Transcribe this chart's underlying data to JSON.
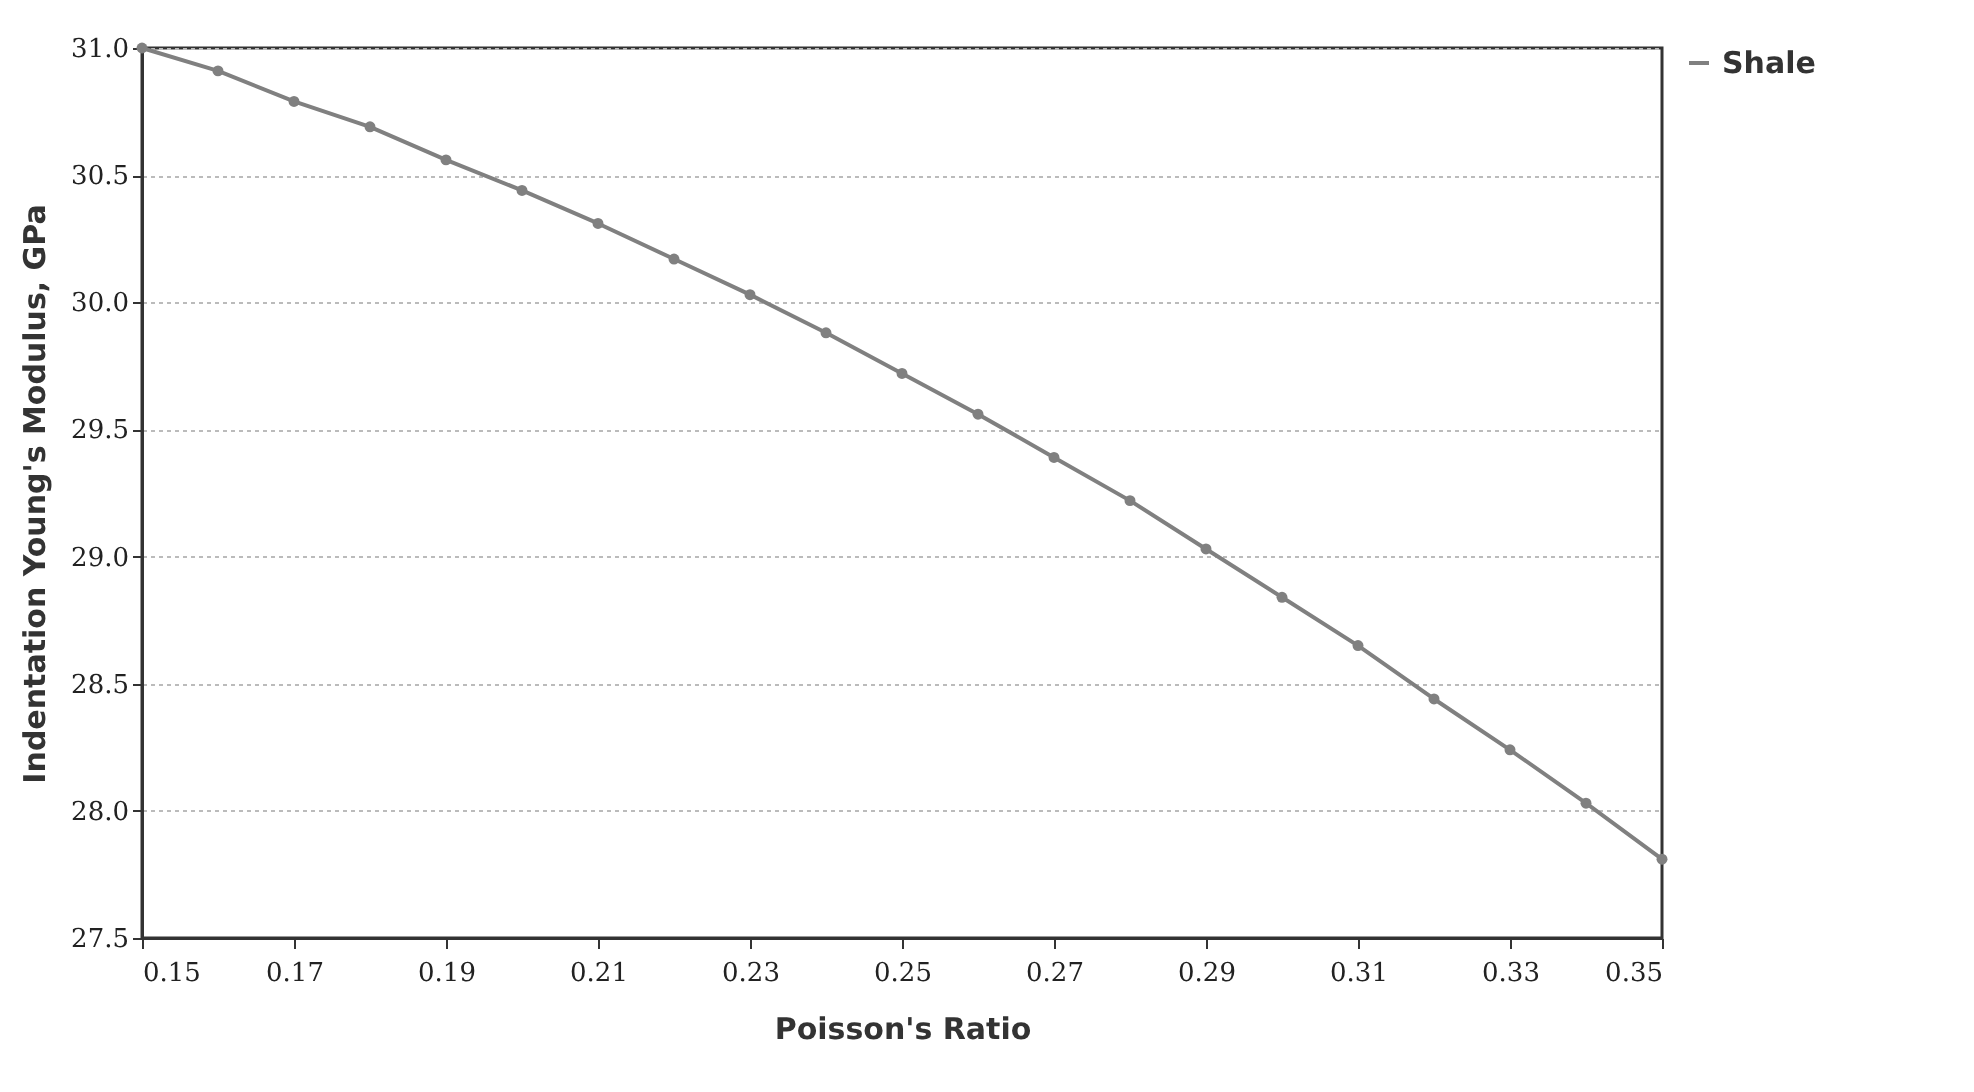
{
  "chart_data": {
    "type": "line",
    "xlabel": "Poisson's Ratio",
    "ylabel": "Indentation Young's Modulus, GPa",
    "x": [
      0.15,
      0.16,
      0.17,
      0.18,
      0.19,
      0.2,
      0.21,
      0.22,
      0.23,
      0.24,
      0.25,
      0.26,
      0.27,
      0.28,
      0.29,
      0.3,
      0.31,
      0.32,
      0.33,
      0.34,
      0.35
    ],
    "series": [
      {
        "name": "Shale",
        "color": "#808080",
        "values": [
          31.0,
          30.91,
          30.79,
          30.69,
          30.56,
          30.44,
          30.31,
          30.17,
          30.03,
          29.88,
          29.72,
          29.56,
          29.39,
          29.22,
          29.03,
          28.84,
          28.65,
          28.44,
          28.24,
          28.03,
          27.81
        ]
      }
    ],
    "xlim": [
      0.15,
      0.35
    ],
    "xticks": [
      {
        "value": 0.15,
        "label": "0.15"
      },
      {
        "value": 0.17,
        "label": "0.17"
      },
      {
        "value": 0.19,
        "label": "0.19"
      },
      {
        "value": 0.21,
        "label": "0.21"
      },
      {
        "value": 0.23,
        "label": "0.23"
      },
      {
        "value": 0.25,
        "label": "0.25"
      },
      {
        "value": 0.27,
        "label": "0.27"
      },
      {
        "value": 0.29,
        "label": "0.29"
      },
      {
        "value": 0.31,
        "label": "0.31"
      },
      {
        "value": 0.33,
        "label": "0.33"
      },
      {
        "value": 0.35,
        "label": "0.35"
      }
    ],
    "ylim": [
      27.5,
      31.0
    ],
    "yticks": [
      {
        "value": 27.5,
        "label": "27.5"
      },
      {
        "value": 28.0,
        "label": "28.0"
      },
      {
        "value": 28.5,
        "label": "28.5"
      },
      {
        "value": 29.0,
        "label": "29.0"
      },
      {
        "value": 29.5,
        "label": "29.5"
      },
      {
        "value": 30.0,
        "label": "30.0"
      },
      {
        "value": 30.5,
        "label": "30.5"
      },
      {
        "value": 31.0,
        "label": "31.0"
      }
    ],
    "grid": "y",
    "legend": "right",
    "marker": "circle",
    "line_style": "solid"
  }
}
